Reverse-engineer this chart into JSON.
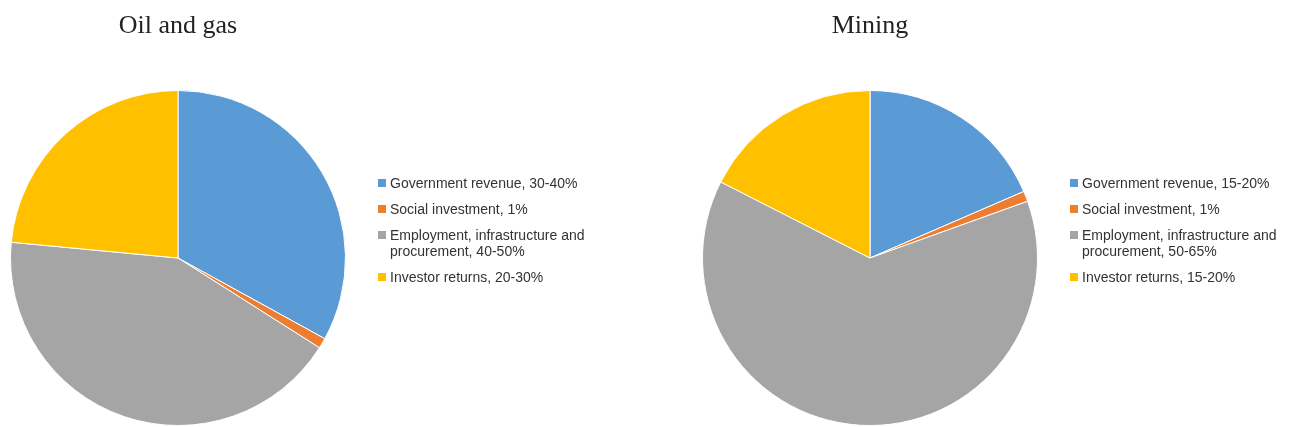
{
  "chart_data": [
    {
      "type": "pie",
      "title": "Oil and gas",
      "categories": [
        "Government revenue, 30-40%",
        "Social investment, 1%",
        "Employment, infrastructure and procurement, 40-50%",
        "Investor returns, 20-30%"
      ],
      "values": [
        33,
        1,
        42.5,
        23.5
      ],
      "colors": [
        "#5b9bd5",
        "#ed7d31",
        "#a5a5a5",
        "#ffc000"
      ],
      "legend": "right"
    },
    {
      "type": "pie",
      "title": "Mining",
      "categories": [
        "Government revenue, 15-20%",
        "Social investment, 1%",
        "Employment, infrastructure and procurement, 50-65%",
        "Investor returns, 15-20%"
      ],
      "values": [
        18.5,
        1,
        63,
        17.5
      ],
      "colors": [
        "#5b9bd5",
        "#ed7d31",
        "#a5a5a5",
        "#ffc000"
      ],
      "legend": "right"
    }
  ]
}
